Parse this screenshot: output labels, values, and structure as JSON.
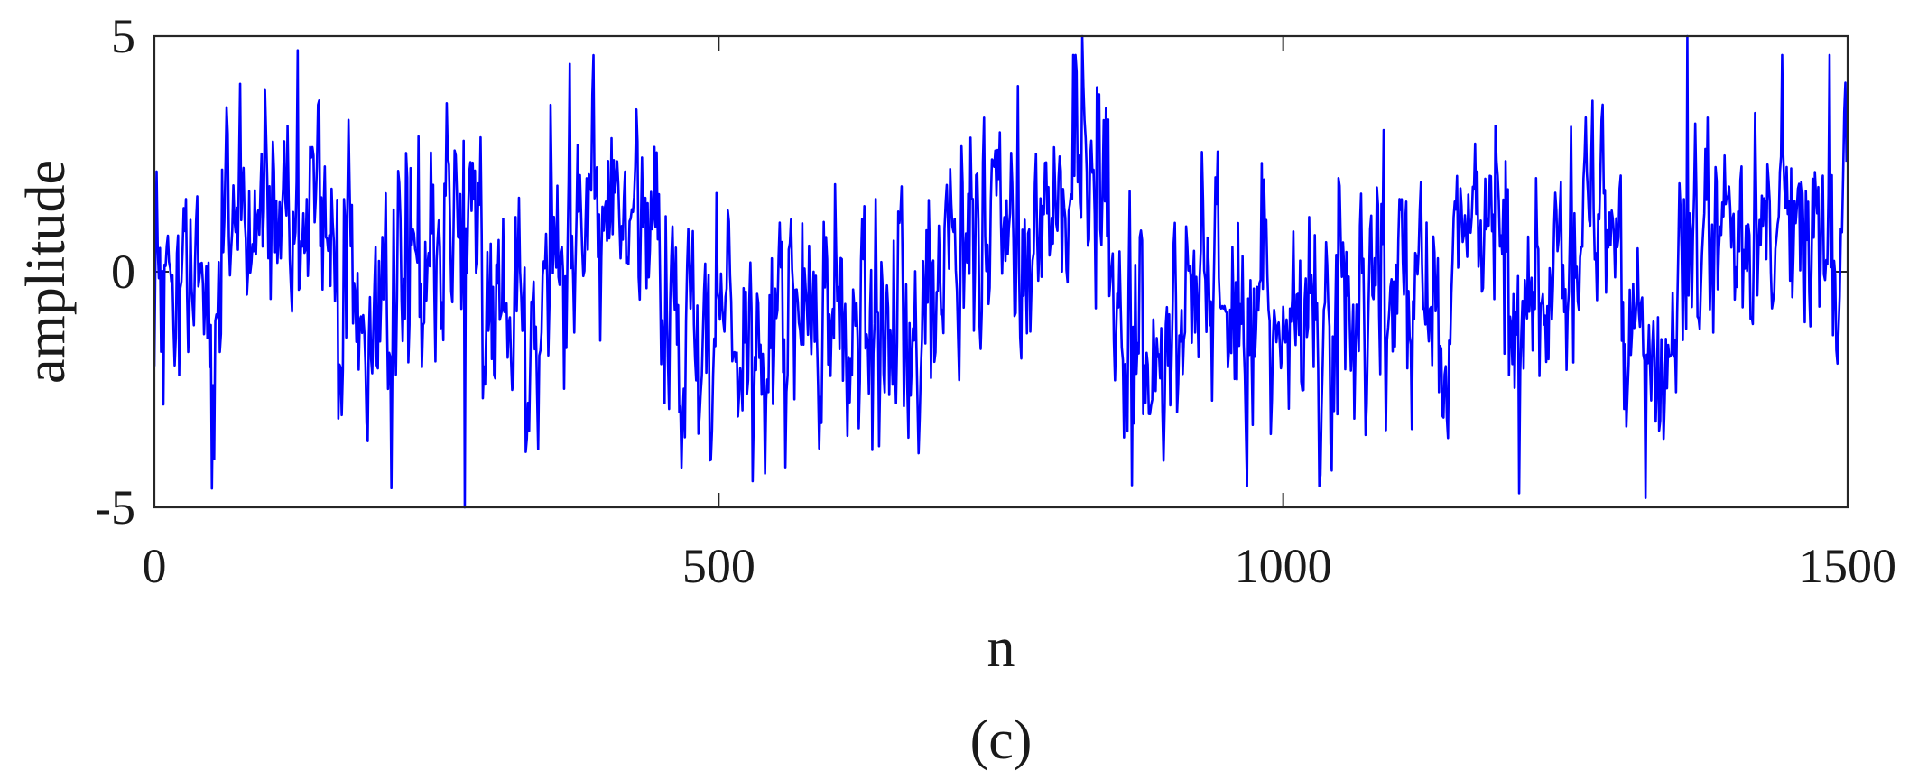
{
  "chart_data": {
    "type": "line",
    "xlabel": "n",
    "ylabel": "amplitude",
    "panel_label": "(c)",
    "xlim": [
      0,
      1500
    ],
    "ylim": [
      -5,
      5
    ],
    "xticks": [
      0,
      500,
      1000,
      1500
    ],
    "yticks": [
      -5,
      0,
      5
    ],
    "xtick_labels": [
      "0",
      "500",
      "1000",
      "1500"
    ],
    "ytick_labels": [
      "-5",
      "0",
      "5"
    ],
    "grid": false,
    "legend": "none",
    "series": [
      {
        "color": "#0000ff",
        "n_samples": 1500,
        "segments": [
          {
            "x": [
              0,
              20
            ],
            "mean": -1.0
          },
          {
            "x": [
              20,
              60
            ],
            "mean": -1.5
          },
          {
            "x": [
              60,
              140
            ],
            "mean": 1.2
          },
          {
            "x": [
              140,
              180
            ],
            "mean": 0.8
          },
          {
            "x": [
              180,
              240
            ],
            "mean": -1.2
          },
          {
            "x": [
              240,
              290
            ],
            "mean": 0.8
          },
          {
            "x": [
              290,
              350
            ],
            "mean": -0.8
          },
          {
            "x": [
              350,
              450
            ],
            "mean": 1.3
          },
          {
            "x": [
              450,
              560
            ],
            "mean": -1.0
          },
          {
            "x": [
              560,
              700
            ],
            "mean": -1.3
          },
          {
            "x": [
              700,
              850
            ],
            "mean": 1.0
          },
          {
            "x": [
              850,
              980
            ],
            "mean": -1.0
          },
          {
            "x": [
              980,
              1150
            ],
            "mean": -0.8
          },
          {
            "x": [
              1150,
              1200
            ],
            "mean": 1.2
          },
          {
            "x": [
              1200,
              1240
            ],
            "mean": -1.0
          },
          {
            "x": [
              1240,
              1300
            ],
            "mean": 1.0
          },
          {
            "x": [
              1300,
              1360
            ],
            "mean": -1.0
          },
          {
            "x": [
              1360,
              1500
            ],
            "mean": 1.2
          }
        ],
        "noise_std": 1.3,
        "extremes": [
          {
            "x": 127,
            "y": 4.7
          },
          {
            "x": 275,
            "y": -5.0
          },
          {
            "x": 822,
            "y": 5.0
          },
          {
            "x": 1209,
            "y": -4.7
          },
          {
            "x": 1321,
            "y": -4.8
          },
          {
            "x": 1358,
            "y": 5.0
          },
          {
            "x": 1484,
            "y": 4.6
          }
        ]
      }
    ]
  }
}
